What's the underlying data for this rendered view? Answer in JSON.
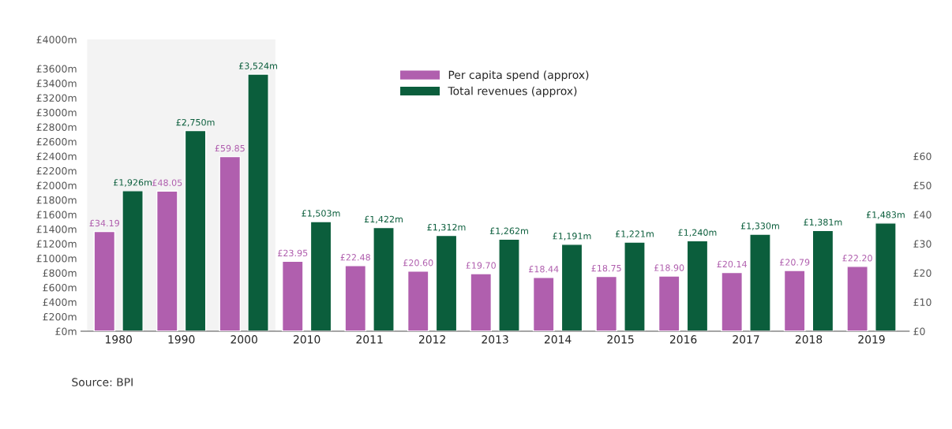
{
  "chart_data": {
    "type": "bar",
    "categories": [
      "1980",
      "1990",
      "2000",
      "2010",
      "2011",
      "2012",
      "2013",
      "2014",
      "2015",
      "2016",
      "2017",
      "2018",
      "2019"
    ],
    "series": [
      {
        "name": "Per capita spend (approx)",
        "color": "#b05fae",
        "axis": "y2",
        "values": [
          34.19,
          48.05,
          59.85,
          23.95,
          22.48,
          20.6,
          19.7,
          18.44,
          18.75,
          18.9,
          20.14,
          20.79,
          22.2
        ],
        "value_labels": [
          "£34.19",
          "£48.05",
          "£59.85",
          "£23.95",
          "£22.48",
          "£20.60",
          "£19.70",
          "£18.44",
          "£18.75",
          "£18.90",
          "£20.14",
          "£20.79",
          "£22.20"
        ]
      },
      {
        "name": "Total revenues (approx)",
        "color": "#0b5e3c",
        "values": [
          1926,
          2750,
          3524,
          1503,
          1422,
          1312,
          1262,
          1191,
          1221,
          1240,
          1330,
          1381,
          1483
        ],
        "value_labels": [
          "£1,926m",
          "£2,750m",
          "£3,524m",
          "£1,503m",
          "£1,422m",
          "£1,312m",
          "£1,262m",
          "£1,191m",
          "£1,221m",
          "£1,240m",
          "£1,330m",
          "£1,381m",
          "£1,483m"
        ]
      }
    ],
    "ylim": [
      0,
      4000
    ],
    "yticks": [
      {
        "value": 0,
        "label": "£0m"
      },
      {
        "value": 200,
        "label": "£200m"
      },
      {
        "value": 400,
        "label": "£400m"
      },
      {
        "value": 600,
        "label": "£600m"
      },
      {
        "value": 800,
        "label": "£800m"
      },
      {
        "value": 1000,
        "label": "£1000m"
      },
      {
        "value": 1200,
        "label": "£1200m"
      },
      {
        "value": 1400,
        "label": "£1400m"
      },
      {
        "value": 1600,
        "label": "£1600m"
      },
      {
        "value": 1800,
        "label": "£1800m"
      },
      {
        "value": 2000,
        "label": "£2000m"
      },
      {
        "value": 2200,
        "label": "£2200m"
      },
      {
        "value": 2400,
        "label": "£2400m"
      },
      {
        "value": 2600,
        "label": "£2600m"
      },
      {
        "value": 2800,
        "label": "£2800m"
      },
      {
        "value": 3000,
        "label": "£3000m"
      },
      {
        "value": 3200,
        "label": "£3200m"
      },
      {
        "value": 3400,
        "label": "£3400m"
      },
      {
        "value": 3600,
        "label": "£3600m"
      },
      {
        "value": 4000,
        "label": "£4000m"
      }
    ],
    "y2lim": [
      0,
      100
    ],
    "y2ticks": [
      {
        "value": 0,
        "label": "£0"
      },
      {
        "value": 10,
        "label": "£10"
      },
      {
        "value": 20,
        "label": "£20"
      },
      {
        "value": 30,
        "label": "£30"
      },
      {
        "value": 40,
        "label": "£40"
      },
      {
        "value": 50,
        "label": "£50"
      },
      {
        "value": 60,
        "label": "£60"
      }
    ],
    "bands": [
      {
        "axis": "x",
        "from": "1980",
        "to": "2000",
        "color": "#f3f3f3"
      }
    ],
    "legend": "top center",
    "grid": false,
    "annotations": [
      "Source: BPI"
    ]
  }
}
